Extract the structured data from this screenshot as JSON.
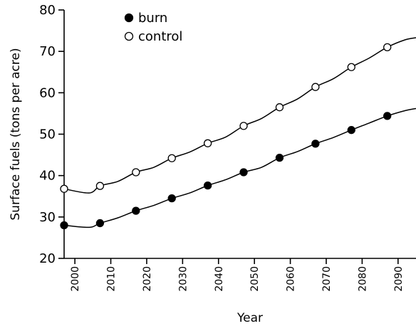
{
  "chart_data": {
    "type": "line",
    "xlabel": "Year",
    "ylabel": "Surface fuels (tons per acre)",
    "xlim": [
      1997,
      2095
    ],
    "ylim": [
      20,
      80
    ],
    "y_ticks": [
      20,
      30,
      40,
      50,
      60,
      70,
      80
    ],
    "x_ticks": [
      2000,
      2010,
      2020,
      2030,
      2040,
      2050,
      2060,
      2070,
      2080,
      2090
    ],
    "grid": false,
    "legend_position": "top-left",
    "series": [
      {
        "name": "burn",
        "marker": "filled-circle",
        "color": "#000000",
        "x": [
          1997,
          2004,
          2007,
          2012,
          2017,
          2022,
          2027,
          2032,
          2037,
          2042,
          2047,
          2052,
          2057,
          2062,
          2067,
          2072,
          2077,
          2082,
          2087,
          2092,
          2095
        ],
        "y": [
          28.0,
          27.5,
          28.5,
          29.8,
          31.5,
          32.8,
          34.5,
          35.8,
          37.6,
          39.0,
          40.8,
          42.0,
          44.3,
          45.8,
          47.7,
          49.2,
          51.0,
          52.7,
          54.4,
          55.7,
          56.2
        ],
        "markers": [
          {
            "x": 1997,
            "y": 28.0
          },
          {
            "x": 2007,
            "y": 28.5
          },
          {
            "x": 2017,
            "y": 31.5
          },
          {
            "x": 2027,
            "y": 34.5
          },
          {
            "x": 2037,
            "y": 37.6
          },
          {
            "x": 2047,
            "y": 40.8
          },
          {
            "x": 2057,
            "y": 44.3
          },
          {
            "x": 2067,
            "y": 47.7
          },
          {
            "x": 2077,
            "y": 51.0
          },
          {
            "x": 2087,
            "y": 54.4
          }
        ]
      },
      {
        "name": "control",
        "marker": "open-circle",
        "color": "#000000",
        "x": [
          1997,
          2004,
          2007,
          2012,
          2017,
          2022,
          2027,
          2032,
          2037,
          2042,
          2047,
          2052,
          2057,
          2062,
          2067,
          2072,
          2077,
          2082,
          2087,
          2092,
          2095
        ],
        "y": [
          36.8,
          35.8,
          37.5,
          38.6,
          40.8,
          42.0,
          44.2,
          45.7,
          47.8,
          49.3,
          52.0,
          53.8,
          56.5,
          58.5,
          61.4,
          63.4,
          66.2,
          68.4,
          71.0,
          72.8,
          73.3
        ],
        "markers": [
          {
            "x": 1997,
            "y": 36.8
          },
          {
            "x": 2007,
            "y": 37.5
          },
          {
            "x": 2017,
            "y": 40.8
          },
          {
            "x": 2027,
            "y": 44.2
          },
          {
            "x": 2037,
            "y": 47.8
          },
          {
            "x": 2047,
            "y": 52.0
          },
          {
            "x": 2057,
            "y": 56.5
          },
          {
            "x": 2067,
            "y": 61.4
          },
          {
            "x": 2077,
            "y": 66.2
          },
          {
            "x": 2087,
            "y": 71.0
          }
        ]
      }
    ]
  }
}
